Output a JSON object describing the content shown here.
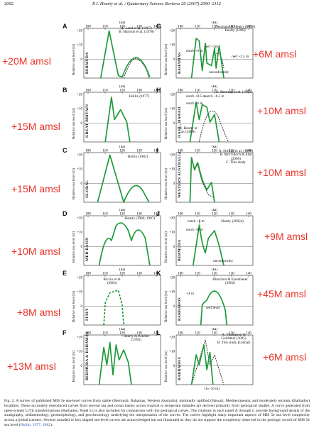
{
  "header": {
    "page": "2092",
    "journal": "P.J. Hearty et al. / Quaternary Science Reviews 26 (2007) 2090–2112"
  },
  "axis": {
    "ka": "(ka)",
    "ylabel": "Relative sea level (m)",
    "xticks": [
      "100",
      "110",
      "120",
      "130",
      "140"
    ],
    "yticks": [
      "+20",
      "+10",
      "0",
      "-10"
    ]
  },
  "panels": [
    {
      "letter": "A",
      "region": "BERMUDA",
      "cite": "A. Land et al. (1967)\nB. Harmon et al. (1978)",
      "amsl": "+20M amsl"
    },
    {
      "letter": "B",
      "region": "GREAT BRITAIN",
      "cite": "Hollin (1977)",
      "amsl": "+15M amsl"
    },
    {
      "letter": "C",
      "region": "GLOBAL",
      "cite": "Hollin (1982)",
      "amsl": "+15M amsl"
    },
    {
      "letter": "D",
      "region": "MED BASIN",
      "cite": "Hearty (1986; 1987)",
      "amsl": "+10M amsl"
    },
    {
      "letter": "E",
      "region": "ITALY",
      "cite": "Riccio et al. (2001)",
      "amsl": "+8M amsl"
    },
    {
      "letter": "F",
      "region": "BERMUDA & BAHAMAS",
      "cite": "Hearty & Kindler (1995)",
      "amsl": "+13M amsl"
    },
    {
      "letter": "G",
      "region": "BAHAMAS",
      "cite": "Neumann & Hearty (1996) Hearty (1998)",
      "amsl": "+6M amsl",
      "notes": [
        "notch +6 m",
        "reef +3m",
        "reef +2.5 m",
        "unconformity"
      ]
    },
    {
      "letter": "H",
      "region": "OAHU, HAWAII",
      "cite": "A. Sherman et al. (1993)",
      "cite2": "B. Hearty et al. (2000)",
      "amsl": "+10M amsl",
      "notes": [
        "notch +8.5 m",
        "notch +8.5 m",
        "notch +6 m"
      ]
    },
    {
      "letter": "I",
      "region": "WESTERN AUSTRALIA",
      "cite": "A. Stirling et al. (1998)\nB. McCulloch & Esat (2000)\nC. This study",
      "amsl": "+10M amsl"
    },
    {
      "letter": "J",
      "region": "BERMUDA",
      "cite": "Hearty (2002a)",
      "amsl": "+9M amsl",
      "notes": [
        "notch +9 m",
        "notch +6 m",
        "unconformity"
      ]
    },
    {
      "letter": "K",
      "region": "BARBADOS",
      "cite": "Blanchon & Eisenhauer (2002)",
      "amsl": "+45M amsl",
      "notes": [
        "+4 m",
        "reef level"
      ]
    },
    {
      "letter": "L",
      "region": "BARBADOS",
      "cite": "A. Thompson & Goldstein (2005)\nB. This study (Global)",
      "amsl": "+6M amsl",
      "notes": [
        "(to -10 m)"
      ]
    }
  ],
  "caption": {
    "text": "Fig. 2. A survey of published MIS 5e sea-level curves from stable (Bermuda, Bahamas, Western Australia), minimally uplifted (Hawaii, Mediterranean), and moderately tectonic (Barbados) localities. These accurately reproduced curves from several sea and ocean basins across tropical to temperate latitudes are derived primarily from geological studies. A curve generated from open-system U/Th transformations (Barbados, Panel L) is also included for comparison with the geological curves. The citations in each panel A through L provide background details of the stratigraphy, sedimentology, geomorphology, and geochronology underlying the interpretation of the curves. The curves highlight many important aspects of MIS 5e sea level complexity across a global transect. Several rounded or box shaped sea-level curves are acknowledged but not illustrated as they do not support the complexity observed in the geologic record of MIS 5e sea level (",
    "link": "Hollin, 1977, 1982",
    "end": ")."
  }
}
